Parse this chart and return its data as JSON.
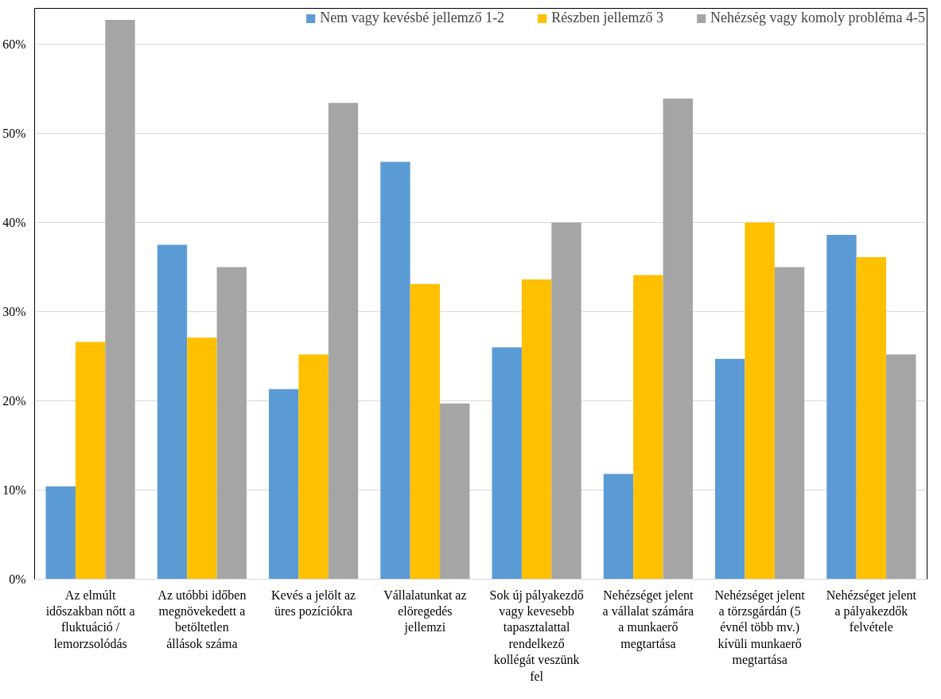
{
  "chart_data": {
    "type": "bar",
    "categories": [
      "Az elmúlt időszakban nőtt a fluktuáció / lemorzsolódás",
      "Az utóbbi időben megnövekedett a betöltetlen állások száma",
      "Kevés a jelölt az üres pozíciókra",
      "Vállalatunkat az elöregedés jellemzi",
      "Sok új pályakezdő vagy kevesebb tapasztalattal rendelkező kollégát veszünk fel",
      "Nehézséget jelent a vállalat számára a munkaerő megtartása",
      "Nehézséget jelent a törzsgárdán (5 évnél több mv.) kívüli munkaerő megtartása",
      "Nehézséget jelent a pályakezdők felvétele"
    ],
    "series": [
      {
        "name": "Nem vagy kevésbé jellemző 1-2",
        "color": "#5b9bd5",
        "values": [
          10.4,
          37.5,
          21.3,
          46.8,
          26.0,
          11.8,
          24.7,
          38.6
        ]
      },
      {
        "name": "Részben jellemző 3",
        "color": "#ffc000",
        "values": [
          26.6,
          27.1,
          25.2,
          33.1,
          33.6,
          34.1,
          40.0,
          36.1
        ]
      },
      {
        "name": "Nehézség vagy komoly probléma 4-5",
        "color": "#a5a5a5",
        "values": [
          62.7,
          35.0,
          53.4,
          19.7,
          40.0,
          53.9,
          35.0,
          25.2
        ]
      }
    ],
    "ylim": [
      0,
      64
    ],
    "yticks": [
      {
        "value": 0,
        "label": "0%"
      },
      {
        "value": 10,
        "label": "10%"
      },
      {
        "value": 20,
        "label": "20%"
      },
      {
        "value": 30,
        "label": "30%"
      },
      {
        "value": 40,
        "label": "40%"
      },
      {
        "value": 50,
        "label": "50%"
      },
      {
        "value": 60,
        "label": "60%"
      }
    ],
    "grid": "y",
    "legend": "top"
  }
}
